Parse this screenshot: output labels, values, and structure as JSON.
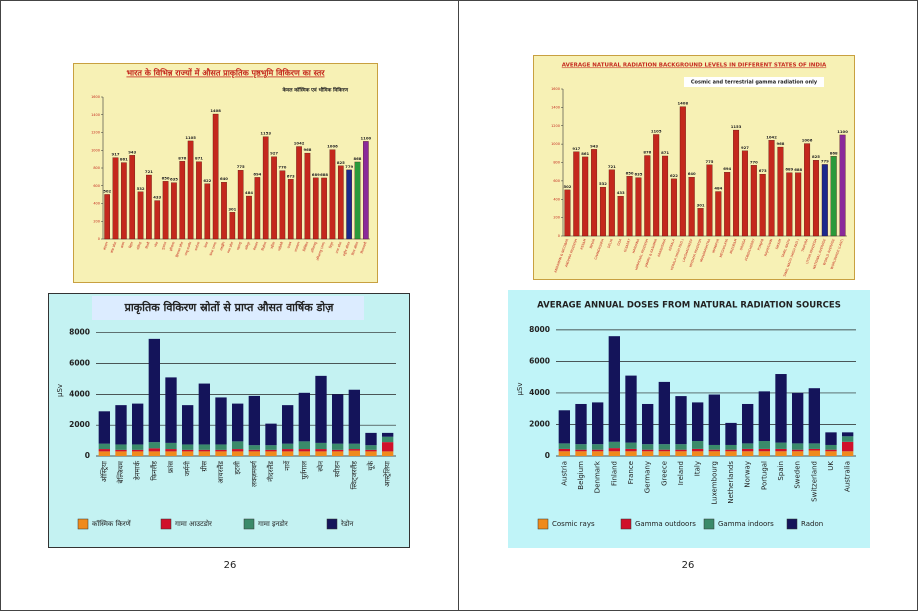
{
  "page_numbers": [
    "26",
    "26"
  ],
  "chart_data": [
    {
      "type": "bar",
      "title": "भारत के विभिन्न राज्यों में औसत प्राकृतिक पृष्ठभूमि विकिरण का स्तर",
      "subtitle": "केवल कॉस्मिक एवं भौमिक विकिरण",
      "categories": [
        "अंडमान",
        "आंध्र प्रदेश",
        "असम",
        "बिहार",
        "चंडीगढ़",
        "दिल्ली",
        "गोवा",
        "गुजरात",
        "हरियाणा",
        "हिमाचल प्रदेश",
        "जम्मू-कश्मीर",
        "कर्नाटक",
        "केरल",
        "केरल (उच्च)",
        "लक्षद्वीप",
        "मध्य प्रदेश",
        "महाराष्ट्र",
        "मणिपुर",
        "मेघालय",
        "मिज़ोरम",
        "उड़ीसा",
        "पांडिचेरी",
        "पंजाब",
        "राजस्थान",
        "सिक्किम",
        "तमिलनाडु",
        "तमिलनाडु (उच्च)",
        "त्रिपुरा",
        "उत्तर प्रदेश",
        "राष्ट्रीय औसत",
        "विश्व औसत",
        "विश्वव्यापी"
      ],
      "values": [
        502,
        917,
        861,
        943,
        532,
        721,
        433,
        650,
        635,
        876,
        1105,
        871,
        622,
        1408,
        640,
        301,
        775,
        484,
        694,
        1153,
        927,
        770,
        673,
        1042,
        968,
        689,
        688,
        1006,
        825,
        779,
        868,
        1100
      ],
      "colors": [
        "#c4281d",
        "#c4281d",
        "#c4281d",
        "#c4281d",
        "#c4281d",
        "#c4281d",
        "#c4281d",
        "#c4281d",
        "#c4281d",
        "#c4281d",
        "#c4281d",
        "#c4281d",
        "#c4281d",
        "#c4281d",
        "#c4281d",
        "#c4281d",
        "#c4281d",
        "#c4281d",
        "#c4281d",
        "#c4281d",
        "#c4281d",
        "#c4281d",
        "#c4281d",
        "#c4281d",
        "#c4281d",
        "#c4281d",
        "#c4281d",
        "#c4281d",
        "#c4281d",
        "#1c2a8c",
        "#2a9a3a",
        "#8a2a9a"
      ],
      "ylim": [
        0,
        1600
      ],
      "yticks": [
        0,
        200,
        400,
        600,
        800,
        1000,
        1200,
        1400,
        1600
      ]
    },
    {
      "type": "bar",
      "title": "AVERAGE NATURAL RADIATION BACKGROUND LEVELS IN DIFFERENT STATES OF INDIA",
      "subtitle": "Cosmic and terrestrial gamma radiation only",
      "categories": [
        "ANDAMAN & NICOBAR",
        "ANDHRA PRADESH",
        "ASSAM",
        "BIHAR",
        "CHANDIGARH",
        "DELHI",
        "GOA",
        "GUJARAT",
        "HARYANA",
        "HIMACHAL PRADESH",
        "JAMMU & KASHMIR",
        "KARNATAKA",
        "KERALA",
        "KERALA (HIGH RAD.)",
        "LAKSHADWEEP",
        "MADHYA PRADESH",
        "MAHARASHTRA",
        "MANIPUR",
        "MEGHALAYA",
        "MIZORAM",
        "ORISSA",
        "PONDICHERRY",
        "PUNJAB",
        "RAJASTHAN",
        "SIKKIM",
        "TAMIL NADU",
        "TAMIL NADU (HIGH RAD.)",
        "TRIPURA",
        "UTTAR PRADESH",
        "NATIONAL AVERAGE",
        "WORLD AVERAGE",
        "WORLDWIDE (LAST)"
      ],
      "values": [
        502,
        917,
        861,
        943,
        532,
        721,
        433,
        650,
        635,
        876,
        1105,
        871,
        622,
        1408,
        640,
        301,
        775,
        484,
        694,
        1153,
        927,
        770,
        673,
        1042,
        968,
        689,
        688,
        1006,
        825,
        779,
        868,
        1100
      ],
      "colors": [
        "#c4281d",
        "#c4281d",
        "#c4281d",
        "#c4281d",
        "#c4281d",
        "#c4281d",
        "#c4281d",
        "#c4281d",
        "#c4281d",
        "#c4281d",
        "#c4281d",
        "#c4281d",
        "#c4281d",
        "#c4281d",
        "#c4281d",
        "#c4281d",
        "#c4281d",
        "#c4281d",
        "#c4281d",
        "#c4281d",
        "#c4281d",
        "#c4281d",
        "#c4281d",
        "#c4281d",
        "#c4281d",
        "#c4281d",
        "#c4281d",
        "#c4281d",
        "#c4281d",
        "#1c2a8c",
        "#2a9a3a",
        "#8a2a9a"
      ],
      "ylim": [
        0,
        1600
      ],
      "yticks": [
        0,
        200,
        400,
        600,
        800,
        1000,
        1200,
        1400,
        1600
      ]
    },
    {
      "type": "stacked_bar",
      "title": "प्राकृतिक विकिरण स्रोतों से प्राप्त औसत वार्षिक डोज़",
      "ylabel": "μSv",
      "categories": [
        "ऑस्ट्रिया",
        "बेल्जियम",
        "डेनमार्क",
        "फिनलैंड",
        "फ्रांस",
        "जर्मनी",
        "ग्रीस",
        "आयरलैंड",
        "इटली",
        "लक्ज़मबर्ग",
        "नीदरलैंड",
        "नार्वे",
        "पुर्तगाल",
        "स्पेन",
        "स्वीडन",
        "स्विट्जरलैंड",
        "यूके",
        "आस्ट्रेलिया"
      ],
      "series": [
        {
          "name": "कॉस्मिक किरणें",
          "color": "#f08a1c",
          "values": [
            300,
            300,
            300,
            300,
            300,
            300,
            300,
            300,
            300,
            300,
            300,
            300,
            300,
            300,
            300,
            350,
            300,
            300
          ]
        },
        {
          "name": "गामा आउटडोर",
          "color": "#d0102a",
          "values": [
            150,
            100,
            100,
            200,
            150,
            100,
            100,
            100,
            150,
            100,
            100,
            150,
            150,
            150,
            100,
            100,
            100,
            600
          ]
        },
        {
          "name": "गामा इनडोर",
          "color": "#3a8a6a",
          "values": [
            350,
            350,
            350,
            400,
            400,
            350,
            350,
            350,
            500,
            300,
            300,
            350,
            500,
            400,
            400,
            350,
            300,
            350
          ]
        },
        {
          "name": "रेडोन",
          "color": "#14145a",
          "values": [
            2100,
            2550,
            2650,
            6700,
            4250,
            2550,
            3950,
            3050,
            2450,
            3200,
            1400,
            2500,
            3150,
            4350,
            3200,
            3500,
            800,
            250
          ]
        }
      ],
      "ylim": [
        0,
        8500
      ],
      "yticks": [
        0,
        2000,
        4000,
        6000,
        8000
      ]
    },
    {
      "type": "stacked_bar",
      "title": "AVERAGE ANNUAL DOSES FROM NATURAL RADIATION SOURCES",
      "ylabel": "μSv",
      "categories": [
        "Austria",
        "Belgium",
        "Denmark",
        "Finland",
        "France",
        "Germany",
        "Greece",
        "Ireland",
        "Italy",
        "Luxembourg",
        "Netherlands",
        "Norway",
        "Portugal",
        "Spain",
        "Sweden",
        "Switzerland",
        "UK",
        "Australia"
      ],
      "series": [
        {
          "name": "Cosmic rays",
          "color": "#f08a1c",
          "values": [
            300,
            300,
            300,
            300,
            300,
            300,
            300,
            300,
            300,
            300,
            300,
            300,
            300,
            300,
            300,
            350,
            300,
            300
          ]
        },
        {
          "name": "Gamma outdoors",
          "color": "#d0102a",
          "values": [
            150,
            100,
            100,
            200,
            150,
            100,
            100,
            100,
            150,
            100,
            100,
            150,
            150,
            150,
            100,
            100,
            100,
            600
          ]
        },
        {
          "name": "Gamma indoors",
          "color": "#3a8a6a",
          "values": [
            350,
            350,
            350,
            400,
            400,
            350,
            350,
            350,
            500,
            300,
            300,
            350,
            500,
            400,
            400,
            350,
            300,
            350
          ]
        },
        {
          "name": "Radon",
          "color": "#14145a",
          "values": [
            2100,
            2550,
            2650,
            6700,
            4250,
            2550,
            3950,
            3050,
            2450,
            3200,
            1400,
            2500,
            3150,
            4350,
            3200,
            3500,
            800,
            250
          ]
        }
      ],
      "ylim": [
        0,
        8500
      ],
      "yticks": [
        0,
        2000,
        4000,
        6000,
        8000
      ]
    }
  ]
}
